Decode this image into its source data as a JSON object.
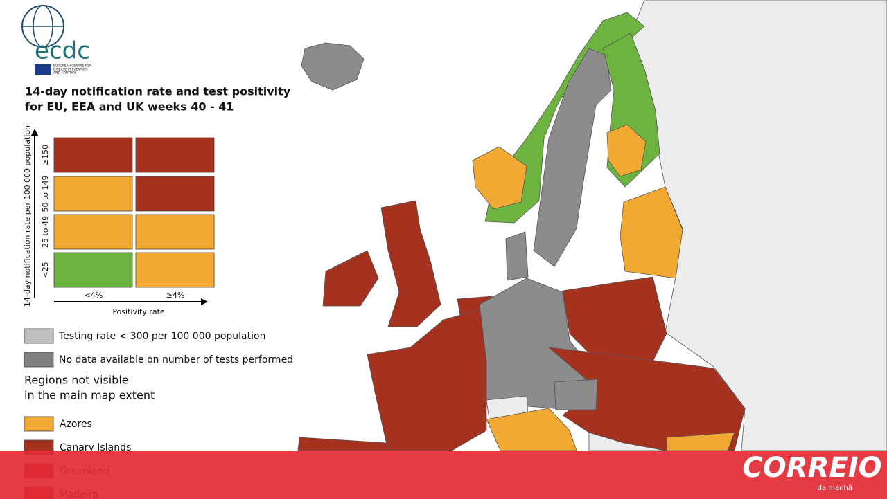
{
  "logo": {
    "name": "ecdc",
    "subtitle": [
      "EUROPEAN CENTRE FOR",
      "DISEASE PREVENTION",
      "AND CONTROL"
    ]
  },
  "title": [
    "14-day notification rate and test positivity",
    "for EU, EEA and UK weeks 40 - 41"
  ],
  "matrix": {
    "y_label": "14-day notification rate per 100 000 population",
    "rows": [
      {
        "label": "≥150",
        "colors": [
          "#a5311f",
          "#a5311f"
        ]
      },
      {
        "label": "50 to 149",
        "colors": [
          "#f2a933",
          "#a5311f"
        ]
      },
      {
        "label": "25 to 49",
        "colors": [
          "#f2a933",
          "#f2a933"
        ]
      },
      {
        "label": "<25",
        "colors": [
          "#6cb33f",
          "#f2a933"
        ]
      }
    ],
    "columns": [
      "<4%",
      "≥4%"
    ],
    "x_label": "Positivity rate"
  },
  "legend": [
    {
      "label": "Testing rate < 300 per 100 000 population",
      "color": "#bdbdbd"
    },
    {
      "label": "No data available on number of tests performed",
      "color": "#808080"
    }
  ],
  "regions_heading": [
    "Regions not visible",
    "in the main map extent"
  ],
  "regions": [
    {
      "label": "Azores",
      "color": "#f2a933"
    },
    {
      "label": "Canary Islands",
      "color": "#a5311f"
    },
    {
      "label": "Greenland",
      "color": "#a5311f"
    },
    {
      "label": "Madeira",
      "color": "#a5311f"
    }
  ],
  "banner": {
    "brand": "CORREIO",
    "tagline": "da manhã"
  }
}
